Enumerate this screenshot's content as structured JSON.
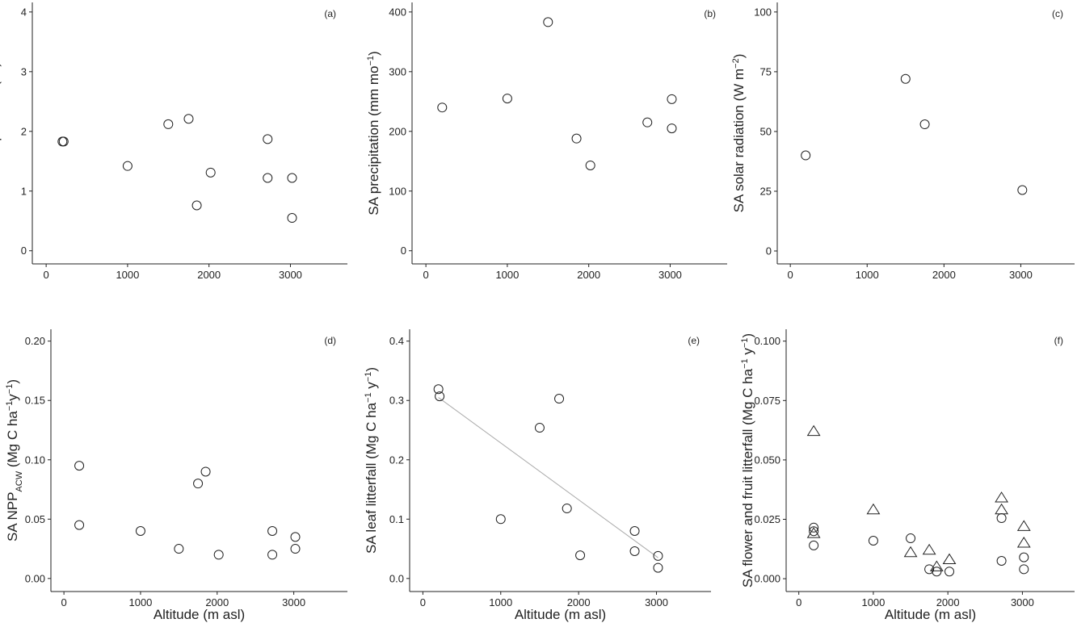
{
  "chart_data": [
    {
      "type": "scatter",
      "panel_label": "(a)",
      "ylabel": [
        {
          "text": "SA air temperature ("
        },
        {
          "text": "o",
          "sup": true
        },
        {
          "text": "C)"
        }
      ],
      "xlim": [
        -170,
        3700
      ],
      "xticks": [
        0,
        1000,
        2000,
        3000
      ],
      "ylim": [
        -0.22,
        4.16
      ],
      "yticks": [
        0,
        1,
        2,
        3,
        4
      ],
      "series": [
        {
          "marker": "circle",
          "x": [
            200,
            215,
            1000,
            1500,
            1750,
            1850,
            2020,
            2720,
            2720,
            3020,
            3020
          ],
          "y": [
            1.83,
            1.83,
            1.42,
            2.12,
            2.21,
            0.76,
            1.31,
            1.87,
            1.22,
            1.22,
            0.55
          ]
        }
      ]
    },
    {
      "type": "scatter",
      "panel_label": "(b)",
      "ylabel": [
        {
          "text": "SA precipitation (mm mo"
        },
        {
          "text": "−1",
          "sup": true
        },
        {
          "text": ")"
        }
      ],
      "xlim": [
        -170,
        3700
      ],
      "xticks": [
        0,
        1000,
        2000,
        3000
      ],
      "ylim": [
        -22,
        416
      ],
      "yticks": [
        0,
        100,
        200,
        300,
        400
      ],
      "series": [
        {
          "marker": "circle",
          "x": [
            200,
            1000,
            1500,
            1850,
            2020,
            2720,
            3020,
            3020
          ],
          "y": [
            240,
            255,
            383,
            188,
            143,
            215,
            254,
            205
          ]
        }
      ]
    },
    {
      "type": "scatter",
      "panel_label": "(c)",
      "ylabel": [
        {
          "text": "SA solar radiation (W m"
        },
        {
          "text": "−2",
          "sup": true
        },
        {
          "text": ")"
        }
      ],
      "xlim": [
        -170,
        3700
      ],
      "xticks": [
        0,
        1000,
        2000,
        3000
      ],
      "ylim": [
        -5.4,
        104
      ],
      "yticks": [
        0,
        25,
        50,
        75,
        100
      ],
      "series": [
        {
          "marker": "circle",
          "x": [
            200,
            1500,
            1750,
            3020
          ],
          "y": [
            40,
            72,
            53,
            25.5
          ]
        }
      ]
    },
    {
      "type": "scatter",
      "panel_label": "(d)",
      "xlabel": "Altitude (m asl)",
      "ylabel": [
        {
          "text": "SA NPP"
        },
        {
          "text": "ACW",
          "sub": true
        },
        {
          "text": " (Mg C  ha"
        },
        {
          "text": "−1",
          "sup": true
        },
        {
          "text": "y"
        },
        {
          "text": "−1",
          "sup": true
        },
        {
          "text": ")"
        }
      ],
      "xlim": [
        -170,
        3700
      ],
      "xticks": [
        0,
        1000,
        2000,
        3000
      ],
      "ylim": [
        -0.011,
        0.21
      ],
      "yticks": [
        {
          "value": 0,
          "label": "0.00"
        },
        {
          "value": 0.05,
          "label": "0.05"
        },
        {
          "value": 0.1,
          "label": "0.10"
        },
        {
          "value": 0.15,
          "label": "0.15"
        },
        {
          "value": 0.2,
          "label": "0.20"
        }
      ],
      "series": [
        {
          "marker": "circle",
          "x": [
            200,
            200,
            1000,
            1500,
            1750,
            1850,
            2020,
            2720,
            2720,
            3020,
            3020
          ],
          "y": [
            0.095,
            0.045,
            0.04,
            0.025,
            0.08,
            0.09,
            0.02,
            0.04,
            0.02,
            0.035,
            0.025
          ]
        }
      ]
    },
    {
      "type": "scatter",
      "panel_label": "(e)",
      "xlabel": "Altitude (m asl)",
      "ylabel": [
        {
          "text": "SA leaf litterfall (Mg C ha"
        },
        {
          "text": "−1",
          "sup": true
        },
        {
          "text": " y"
        },
        {
          "text": "−1",
          "sup": true
        },
        {
          "text": ")"
        }
      ],
      "xlim": [
        -170,
        3700
      ],
      "xticks": [
        0,
        1000,
        2000,
        3000
      ],
      "ylim": [
        -0.022,
        0.42
      ],
      "yticks": [
        {
          "value": 0,
          "label": "0.0"
        },
        {
          "value": 0.1,
          "label": "0.1"
        },
        {
          "value": 0.2,
          "label": "0.2"
        },
        {
          "value": 0.3,
          "label": "0.3"
        },
        {
          "value": 0.4,
          "label": "0.4"
        }
      ],
      "series": [
        {
          "marker": "circle",
          "x": [
            200,
            215,
            1000,
            1500,
            1750,
            1850,
            2020,
            2720,
            2720,
            3020,
            3020
          ],
          "y": [
            0.319,
            0.307,
            0.1,
            0.254,
            0.303,
            0.118,
            0.039,
            0.08,
            0.046,
            0.038,
            0.018
          ]
        }
      ],
      "trend": {
        "x": [
          200,
          3020
        ],
        "y": [
          0.305,
          0.035
        ],
        "color": "#aaaaaa"
      }
    },
    {
      "type": "scatter",
      "panel_label": "(f)",
      "xlabel": "Altitude (m asl)",
      "ylabel": [
        {
          "text": "SA flower and fruit litterfall (Mg C ha"
        },
        {
          "text": "−1",
          "sup": true
        },
        {
          "text": " y"
        },
        {
          "text": "−1",
          "sup": true
        },
        {
          "text": ")"
        }
      ],
      "xlim": [
        -170,
        3700
      ],
      "xticks": [
        0,
        1000,
        2000,
        3000
      ],
      "ylim": [
        -0.0054,
        0.105
      ],
      "yticks": [
        {
          "value": 0,
          "label": "0.000"
        },
        {
          "value": 0.025,
          "label": "0.025"
        },
        {
          "value": 0.05,
          "label": "0.050"
        },
        {
          "value": 0.075,
          "label": "0.075"
        },
        {
          "value": 0.1,
          "label": "0.100"
        }
      ],
      "series": [
        {
          "marker": "circle",
          "x": [
            200,
            200,
            200,
            1000,
            1500,
            1750,
            1850,
            2020,
            2720,
            2720,
            3020,
            3020
          ],
          "y": [
            0.0215,
            0.02,
            0.014,
            0.016,
            0.017,
            0.004,
            0.003,
            0.003,
            0.0255,
            0.0075,
            0.009,
            0.004
          ]
        },
        {
          "marker": "triangle",
          "x": [
            200,
            200,
            1000,
            1500,
            1750,
            1850,
            2020,
            2720,
            2720,
            3020,
            3020
          ],
          "y": [
            0.062,
            0.019,
            0.029,
            0.011,
            0.012,
            0.005,
            0.008,
            0.034,
            0.029,
            0.022,
            0.015
          ]
        }
      ]
    }
  ]
}
